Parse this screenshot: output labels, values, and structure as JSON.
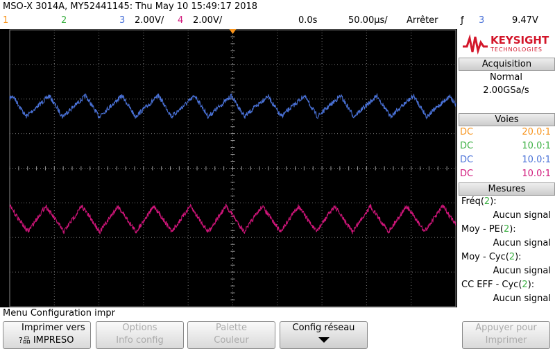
{
  "header": {
    "title": "MSO-X 3014A, MY52441145: Thu May 10 15:49:17 2018"
  },
  "status": {
    "channels": [
      {
        "label": "1",
        "color": "#f7941d"
      },
      {
        "label": "2",
        "color": "#3cb043"
      },
      {
        "label": "3",
        "scale": "2.00V/",
        "color": "#4a72d8"
      },
      {
        "label": "4",
        "scale": "2.00V/",
        "color": "#d0157a"
      }
    ],
    "time": "0.0s",
    "timebase": "50.00µs/",
    "run_state": "Arrêter",
    "trigger_icon": "ƒ",
    "trigger_channel": "3",
    "trigger_level": "9.47V"
  },
  "sidebar": {
    "brand": "KEYSIGHT",
    "brand_sub": "TECHNOLOGIES",
    "acquisition": {
      "header": "Acquisition",
      "mode": "Normal",
      "rate": "2.00GSa/s"
    },
    "channels": {
      "header": "Voies",
      "rows": [
        {
          "coupling": "DC",
          "probe": "20.0:1",
          "color": "#f7941d"
        },
        {
          "coupling": "DC",
          "probe": "10.0:1",
          "color": "#3cb043"
        },
        {
          "coupling": "DC",
          "probe": "10.0:1",
          "color": "#4a72d8"
        },
        {
          "coupling": "DC",
          "probe": "10.0:1",
          "color": "#d0157a"
        }
      ]
    },
    "measurements": {
      "header": "Mesures",
      "items": [
        {
          "prefix": "Fréq(",
          "channel": "2",
          "suffix": "):",
          "value": "Aucun signal"
        },
        {
          "prefix": "Moy - PE(",
          "channel": "2",
          "suffix": "):",
          "value": "Aucun signal"
        },
        {
          "prefix": "Moy - Cyc(",
          "channel": "2",
          "suffix": "):",
          "value": "Aucun signal"
        },
        {
          "prefix": "CC EFF - Cyc(",
          "channel": "2",
          "suffix": "):",
          "value": "Aucun signal"
        }
      ]
    }
  },
  "menu": {
    "title": "Menu Configuration impr",
    "buttons": [
      {
        "line1": "Imprimer vers",
        "line2": "IMPRESO",
        "icon": "?品"
      },
      {
        "line1": "Options",
        "line2": "Info config"
      },
      {
        "line1": "Palette",
        "line2": "Couleur"
      },
      {
        "line1": "Config réseau"
      },
      {
        "line1": "Appuyer pour",
        "line2": "Imprimer"
      }
    ]
  }
}
